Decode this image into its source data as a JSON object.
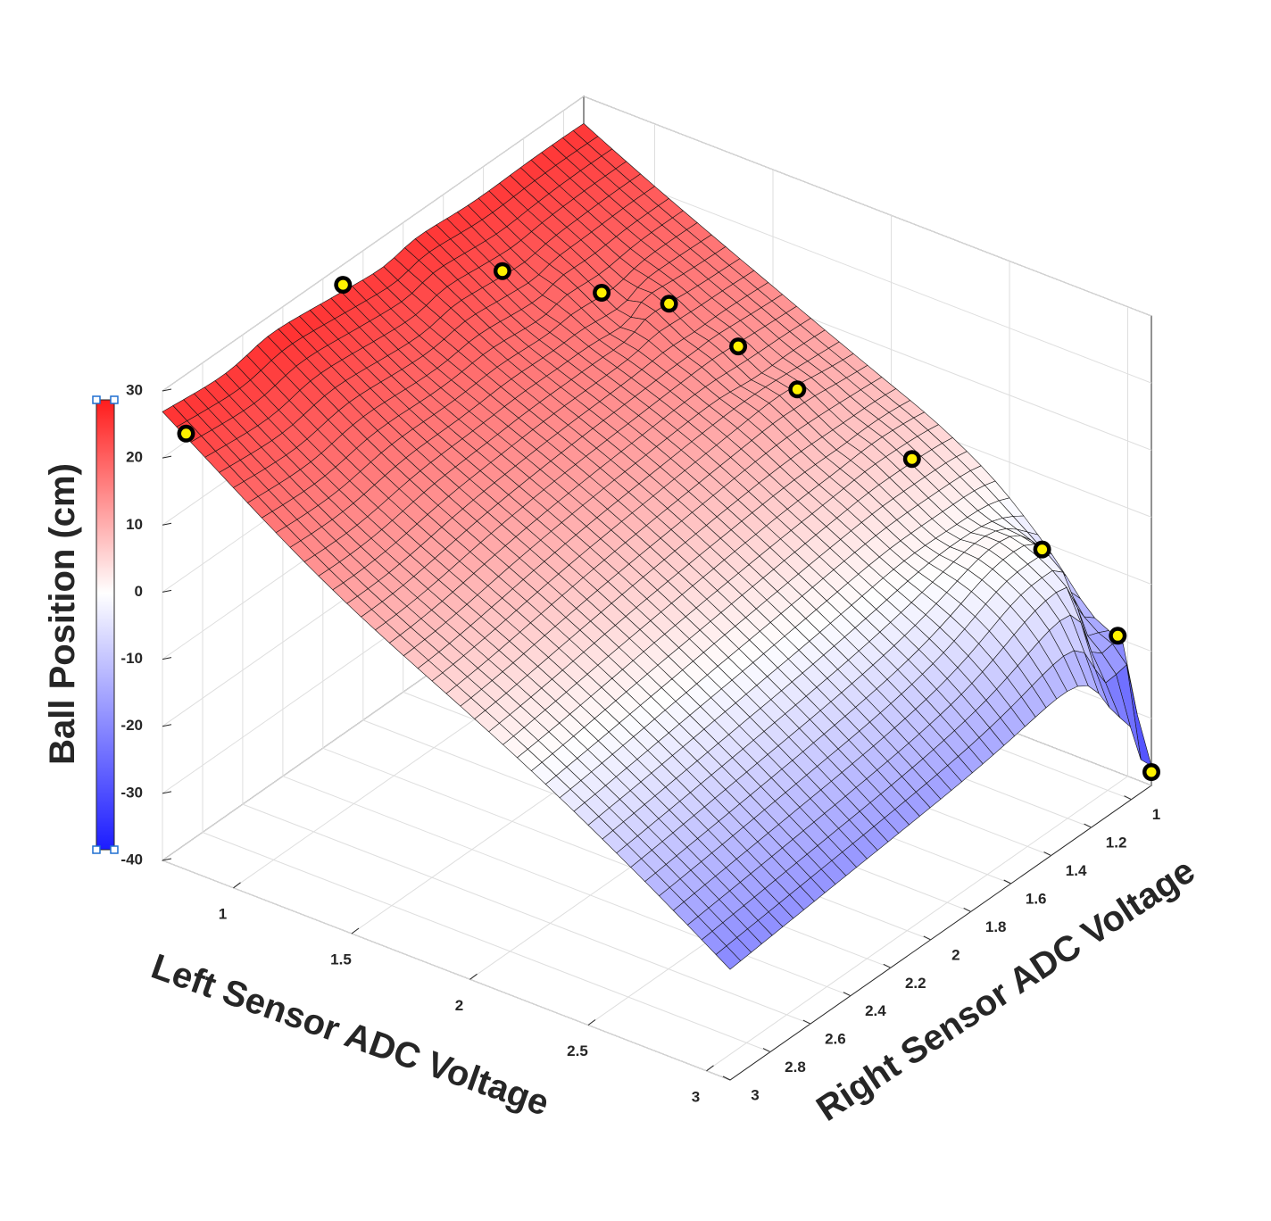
{
  "chart_data": {
    "type": "surface",
    "xlabel": "Left Sensor ADC Voltage",
    "ylabel": "Right Sensor ADC Voltage",
    "zlabel": "Ball Position (cm)",
    "xlim": [
      0.7,
      3.1
    ],
    "ylim": [
      0.9,
      3.0
    ],
    "zlim": [
      -40,
      30
    ],
    "xticks": [
      1,
      1.5,
      2,
      2.5,
      3
    ],
    "xtick_labels": [
      "1",
      "1.5",
      "2",
      "2.5",
      "3"
    ],
    "yticks": [
      1,
      1.2,
      1.4,
      1.6,
      1.8,
      2,
      2.2,
      2.4,
      2.6,
      2.8,
      3
    ],
    "ytick_labels": [
      "1",
      "1.2",
      "1.4",
      "1.6",
      "1.8",
      "2",
      "2.2",
      "2.4",
      "2.6",
      "2.8",
      "3"
    ],
    "zticks": [
      -40,
      -30,
      -20,
      -10,
      0,
      10,
      20,
      30
    ],
    "ztick_labels": [
      "-40",
      "-30",
      "-20",
      "-10",
      "0",
      "10",
      "20",
      "30"
    ],
    "grid": true,
    "colormap": {
      "low": "#1c1cff",
      "mid": "#ffffff",
      "high": "#ff1c1c"
    },
    "clim": [
      -40,
      30
    ],
    "colorbar": "left",
    "marker_color": "#fff200",
    "marker_edge": "#000000",
    "points": [
      {
        "x": 0.8,
        "y": 3.0,
        "z": 25
      },
      {
        "x": 0.7,
        "y": 2.1,
        "z": 27
      },
      {
        "x": 0.95,
        "y": 1.6,
        "z": 22
      },
      {
        "x": 1.2,
        "y": 1.4,
        "z": 18
      },
      {
        "x": 1.4,
        "y": 1.3,
        "z": 17
      },
      {
        "x": 1.65,
        "y": 1.25,
        "z": 13
      },
      {
        "x": 1.9,
        "y": 1.25,
        "z": 10
      },
      {
        "x": 2.3,
        "y": 1.15,
        "z": 3
      },
      {
        "x": 2.85,
        "y": 1.15,
        "z": -3
      },
      {
        "x": 3.0,
        "y": 0.95,
        "z": -18
      },
      {
        "x": 3.1,
        "y": 0.9,
        "z": -38
      }
    ]
  }
}
